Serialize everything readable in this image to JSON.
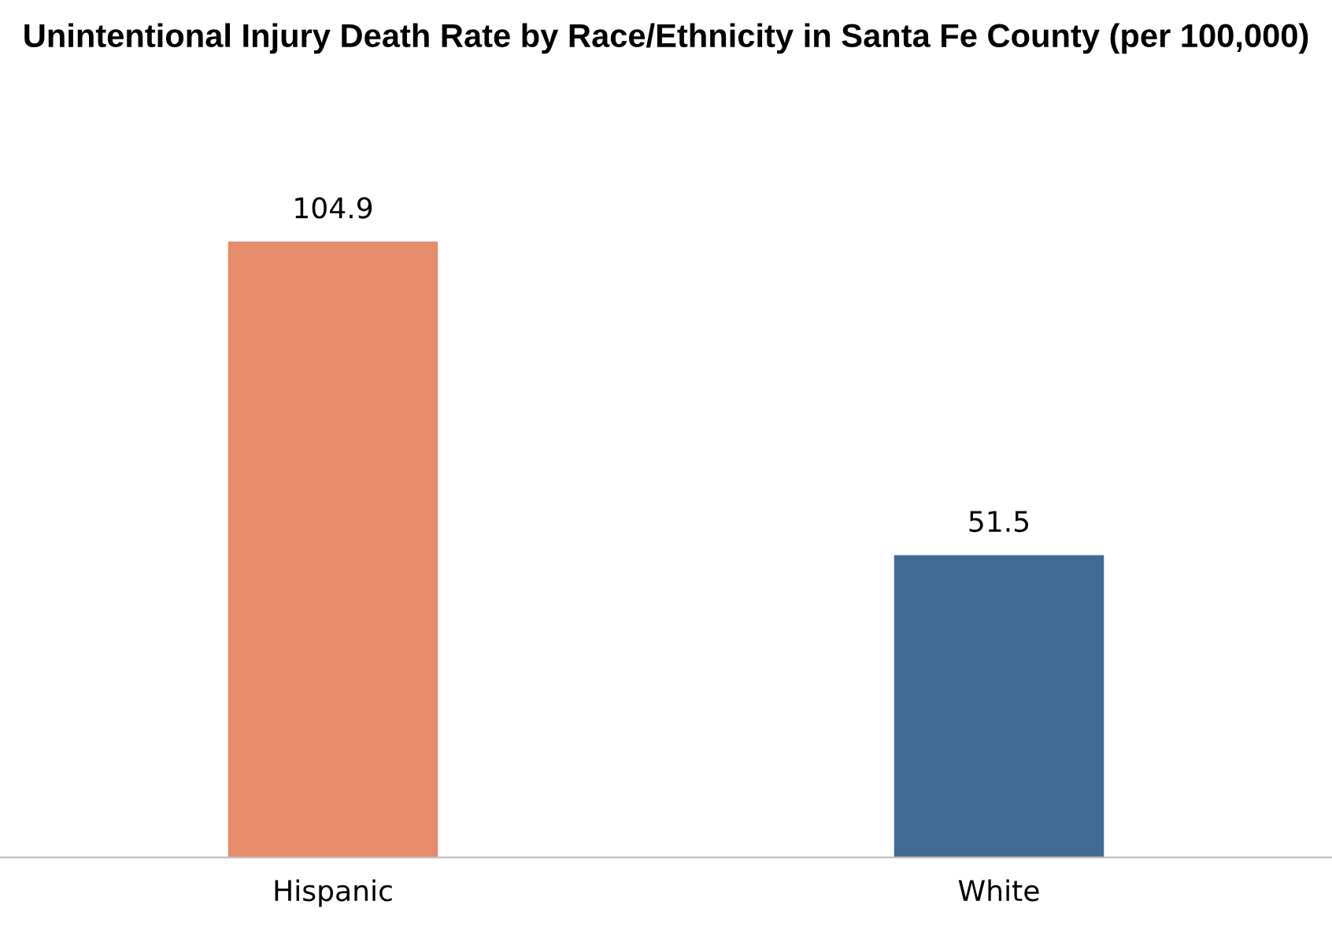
{
  "chart_data": {
    "type": "bar",
    "title": "Unintentional Injury Death Rate by Race/Ethnicity in Santa Fe County (per 100,000)",
    "categories": [
      "Hispanic",
      "White"
    ],
    "values": [
      104.9,
      51.5
    ],
    "colors": [
      "#e58c6b",
      "#416a95"
    ],
    "data_labels": true
  }
}
